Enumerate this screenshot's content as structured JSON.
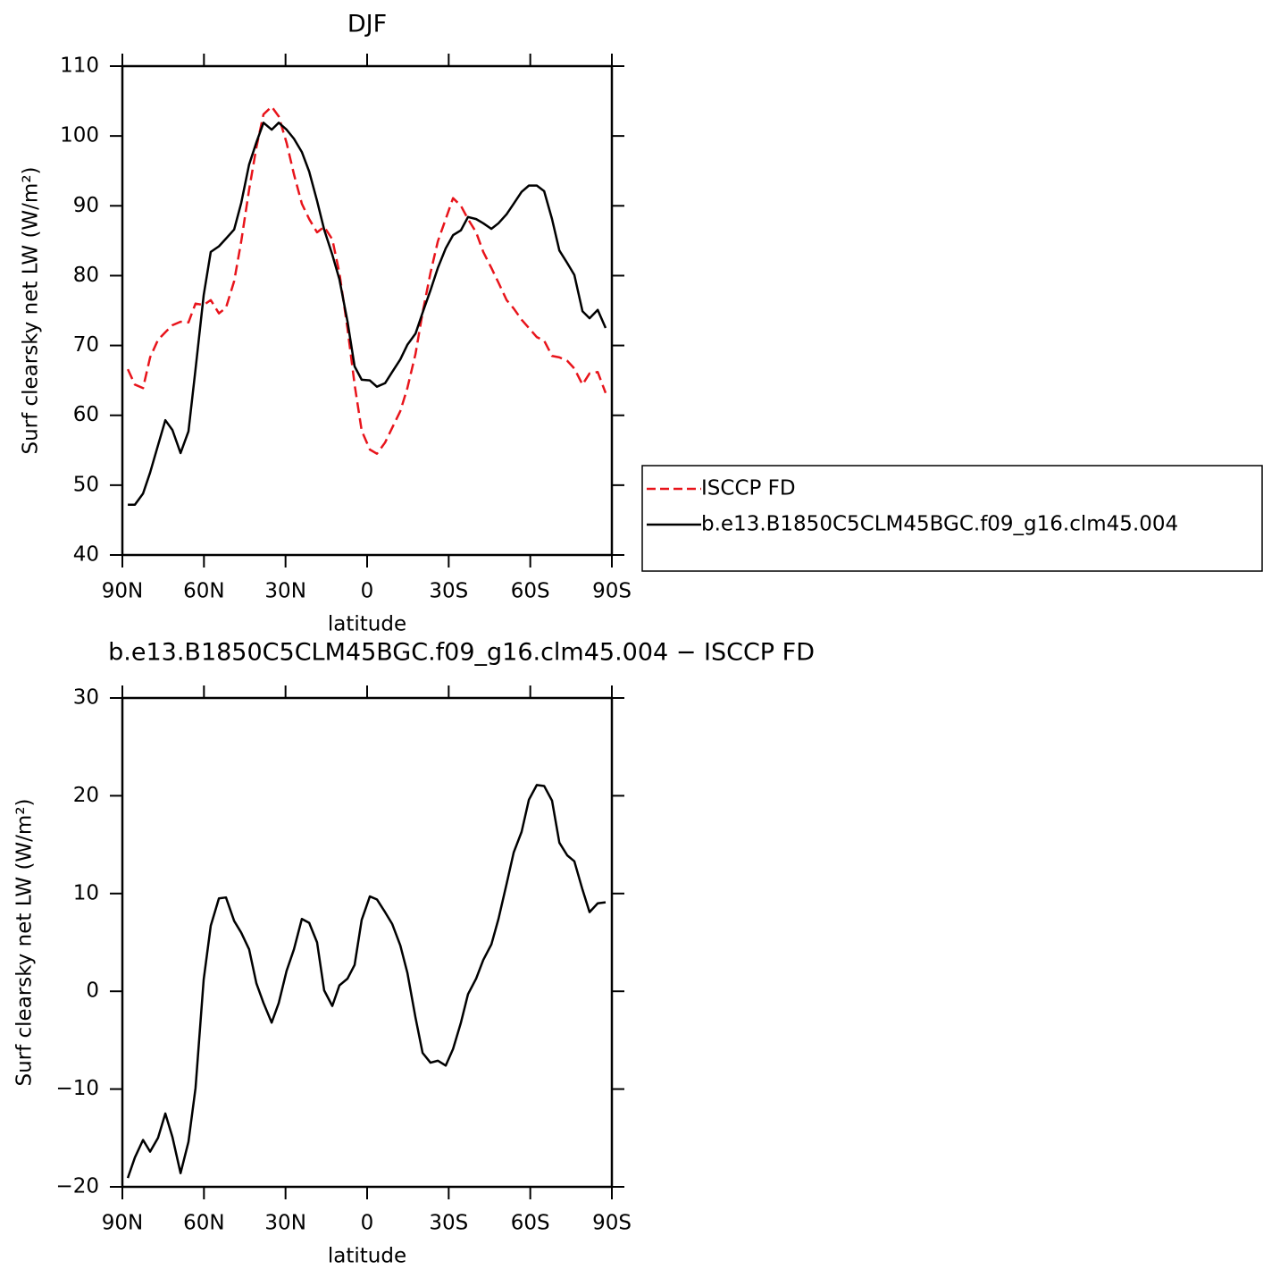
{
  "chart_data": [
    {
      "type": "line",
      "title": "DJF",
      "xlabel": "latitude",
      "ylabel": "Surf clearsky net LW (W/m²)",
      "x": [
        88.0,
        85.4,
        82.4,
        79.8,
        76.9,
        74.2,
        71.6,
        68.6,
        65.7,
        63.1,
        60.1,
        57.5,
        54.5,
        51.9,
        48.9,
        46.3,
        43.4,
        40.7,
        38.1,
        35.1,
        32.5,
        29.6,
        26.9,
        24.0,
        21.3,
        18.4,
        15.8,
        12.8,
        10.2,
        7.2,
        4.6,
        2.0,
        -1.0,
        -3.6,
        -6.6,
        -9.2,
        -12.2,
        -14.8,
        -17.8,
        -20.4,
        -23.3,
        -26.0,
        -28.9,
        -31.6,
        -34.5,
        -37.1,
        -40.1,
        -42.7,
        -45.7,
        -48.3,
        -51.3,
        -53.9,
        -56.8,
        -59.5,
        -62.4,
        -65.1,
        -68.0,
        -70.7,
        -73.6,
        -76.2,
        -79.2,
        -81.8,
        -84.8,
        -87.7
      ],
      "xlim": [
        90,
        -90
      ],
      "xticks": [
        {
          "value": 90,
          "label": "90N"
        },
        {
          "value": 60,
          "label": "60N"
        },
        {
          "value": 30,
          "label": "30N"
        },
        0,
        {
          "value": -30,
          "label": "30S"
        },
        {
          "value": -60,
          "label": "60S"
        },
        {
          "value": -90,
          "label": "90S"
        }
      ],
      "ylim": [
        40,
        110
      ],
      "yticks": [
        40,
        50,
        60,
        70,
        80,
        90,
        100,
        110
      ],
      "series": [
        {
          "name": "ISCCP FD",
          "color": "#e8141b",
          "dashed": true,
          "values": [
            66.6,
            64.4,
            63.9,
            68.3,
            70.8,
            71.9,
            72.9,
            73.4,
            73.3,
            76.0,
            75.8,
            76.5,
            74.6,
            75.4,
            79.2,
            84.9,
            92.3,
            98.4,
            103.1,
            104.2,
            102.8,
            99.0,
            94.5,
            90.3,
            88.1,
            86.2,
            87.0,
            85.2,
            80.4,
            72.4,
            64.4,
            57.8,
            55.1,
            54.5,
            56.1,
            58.2,
            60.6,
            63.9,
            68.8,
            74.7,
            80.4,
            84.9,
            88.1,
            91.1,
            90.0,
            88.1,
            86.2,
            83.4,
            81.1,
            79.0,
            76.5,
            75.3,
            73.7,
            72.5,
            71.2,
            70.7,
            68.5,
            68.3,
            67.8,
            66.7,
            64.4,
            66.0,
            66.2,
            63.2
          ]
        },
        {
          "name": "b.e13.B1850C5CLM45BGC.f09_g16.clm45.004",
          "color": "#000000",
          "dashed": false,
          "values": [
            47.2,
            47.2,
            48.8,
            51.8,
            55.7,
            59.3,
            57.9,
            54.6,
            57.7,
            66.6,
            77.2,
            83.4,
            84.2,
            85.3,
            86.6,
            90.4,
            95.9,
            99.1,
            101.9,
            100.9,
            101.9,
            100.9,
            99.6,
            97.7,
            94.9,
            90.7,
            86.6,
            83.0,
            79.5,
            73.4,
            67.0,
            65.1,
            65.0,
            64.1,
            64.6,
            66.2,
            68.0,
            70.1,
            71.7,
            74.7,
            77.9,
            81.1,
            83.9,
            85.8,
            86.5,
            88.4,
            88.1,
            87.5,
            86.7,
            87.5,
            88.8,
            90.3,
            92.0,
            92.9,
            92.9,
            92.1,
            88.1,
            83.6,
            81.8,
            80.1,
            74.9,
            73.9,
            75.1,
            72.5
          ]
        }
      ]
    },
    {
      "type": "line",
      "title": "b.e13.B1850C5CLM45BGC.f09_g16.clm45.004 − ISCCP FD",
      "xlabel": "latitude",
      "ylabel": "Surf clearsky net LW (W/m²)",
      "x": [
        88.0,
        85.4,
        82.4,
        79.8,
        76.9,
        74.2,
        71.6,
        68.6,
        65.7,
        63.1,
        60.1,
        57.5,
        54.5,
        51.9,
        48.9,
        46.3,
        43.4,
        40.7,
        38.1,
        35.1,
        32.5,
        29.6,
        26.9,
        24.0,
        21.3,
        18.4,
        15.8,
        12.8,
        10.2,
        7.2,
        4.6,
        2.0,
        -1.0,
        -3.6,
        -6.6,
        -9.2,
        -12.2,
        -14.8,
        -17.8,
        -20.4,
        -23.3,
        -26.0,
        -28.9,
        -31.6,
        -34.5,
        -37.1,
        -40.1,
        -42.7,
        -45.7,
        -48.3,
        -51.3,
        -53.9,
        -56.8,
        -59.5,
        -62.4,
        -65.1,
        -68.0,
        -70.7,
        -73.6,
        -76.2,
        -79.2,
        -81.8,
        -84.8,
        -87.7
      ],
      "xlim": [
        90,
        -90
      ],
      "xticks": [
        {
          "value": 90,
          "label": "90N"
        },
        {
          "value": 60,
          "label": "60N"
        },
        {
          "value": 30,
          "label": "30N"
        },
        0,
        {
          "value": -30,
          "label": "30S"
        },
        {
          "value": -60,
          "label": "60S"
        },
        {
          "value": -90,
          "label": "90S"
        }
      ],
      "ylim": [
        -20,
        30
      ],
      "yticks": [
        {
          "value": -20,
          "label": "−20"
        },
        {
          "value": -10,
          "label": "−10"
        },
        0,
        10,
        20,
        30
      ],
      "series": [
        {
          "color": "#000000",
          "dashed": false,
          "values": [
            -19.1,
            -17.0,
            -15.2,
            -16.4,
            -15.0,
            -12.5,
            -14.9,
            -18.6,
            -15.4,
            -9.9,
            1.2,
            6.7,
            9.5,
            9.6,
            7.2,
            6.0,
            4.3,
            0.8,
            -1.2,
            -3.2,
            -1.2,
            2.1,
            4.3,
            7.4,
            7.0,
            5.0,
            0.1,
            -1.5,
            0.6,
            1.3,
            2.7,
            7.3,
            9.7,
            9.4,
            8.1,
            6.9,
            4.7,
            1.9,
            -2.7,
            -6.3,
            -7.3,
            -7.1,
            -7.6,
            -5.9,
            -3.2,
            -0.3,
            1.3,
            3.2,
            4.8,
            7.4,
            11.0,
            14.2,
            16.3,
            19.6,
            21.1,
            21.0,
            19.5,
            15.2,
            13.9,
            13.3,
            10.4,
            8.1,
            9.0,
            9.1
          ]
        }
      ]
    }
  ]
}
